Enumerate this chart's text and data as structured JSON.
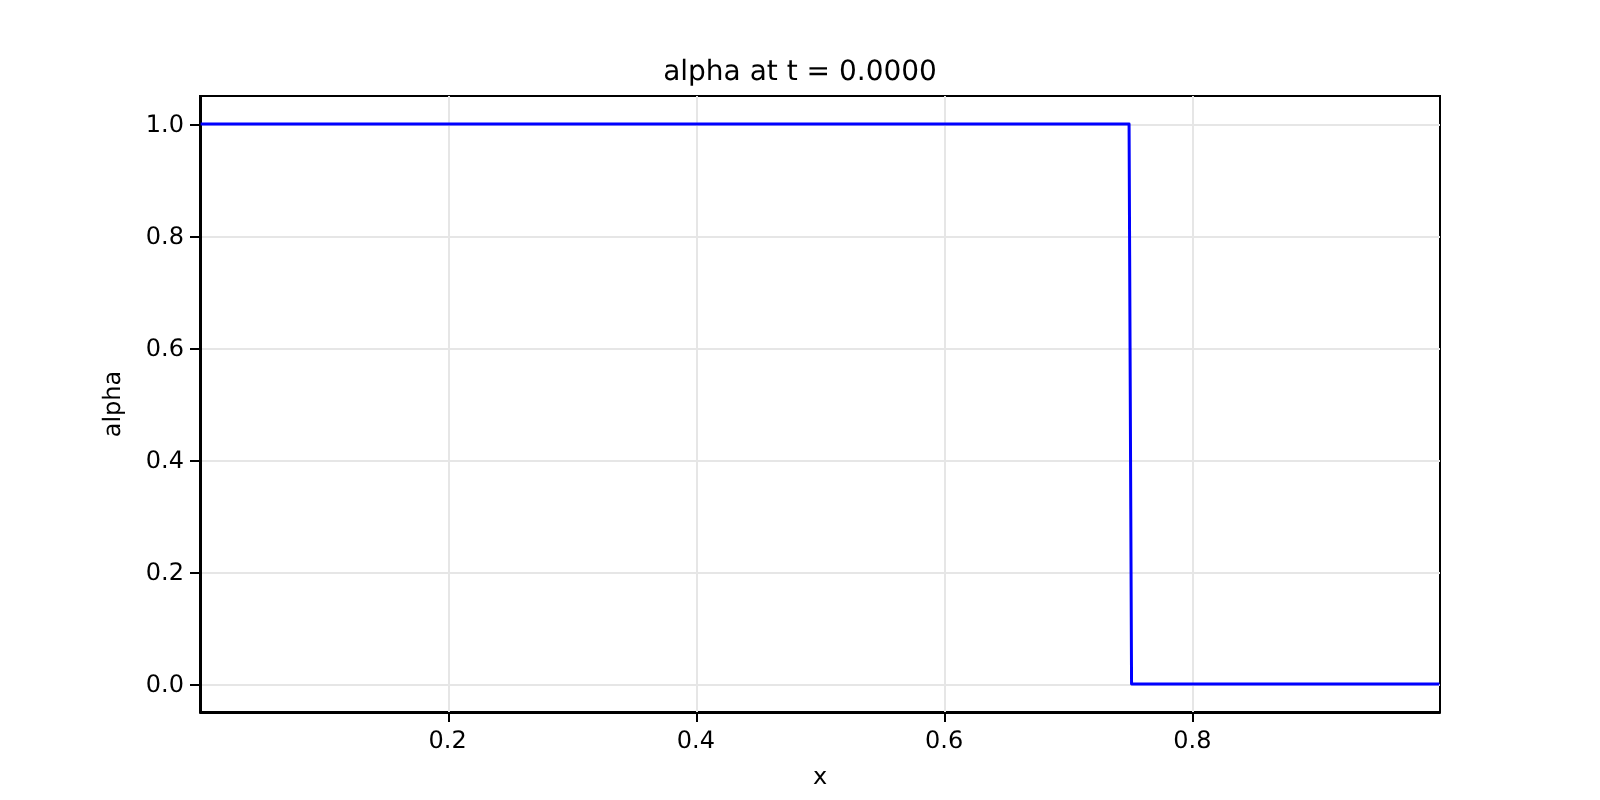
{
  "chart_data": {
    "type": "line",
    "title": "alpha at t = 0.0000",
    "xlabel": "x",
    "ylabel": "alpha",
    "x": [
      0.001,
      0.749,
      0.751,
      0.999
    ],
    "series": [
      {
        "color": "#0000ff",
        "values": [
          1,
          1,
          0,
          0
        ]
      }
    ],
    "xlim": [
      0.0005,
      0.9995
    ],
    "xticks": [
      0.2,
      0.4,
      0.6,
      0.8
    ],
    "ylim": [
      -0.05,
      1.05
    ],
    "yticks": [
      {
        "value": 0,
        "label": "0.0"
      },
      {
        "value": 0.2,
        "label": "0.2"
      },
      {
        "value": 0.4,
        "label": "0.4"
      },
      {
        "value": 0.6,
        "label": "0.6"
      },
      {
        "value": 0.8,
        "label": "0.8"
      },
      {
        "value": 1,
        "label": "1.0"
      }
    ],
    "grid": true,
    "marker": "none",
    "line_style": "solid"
  }
}
